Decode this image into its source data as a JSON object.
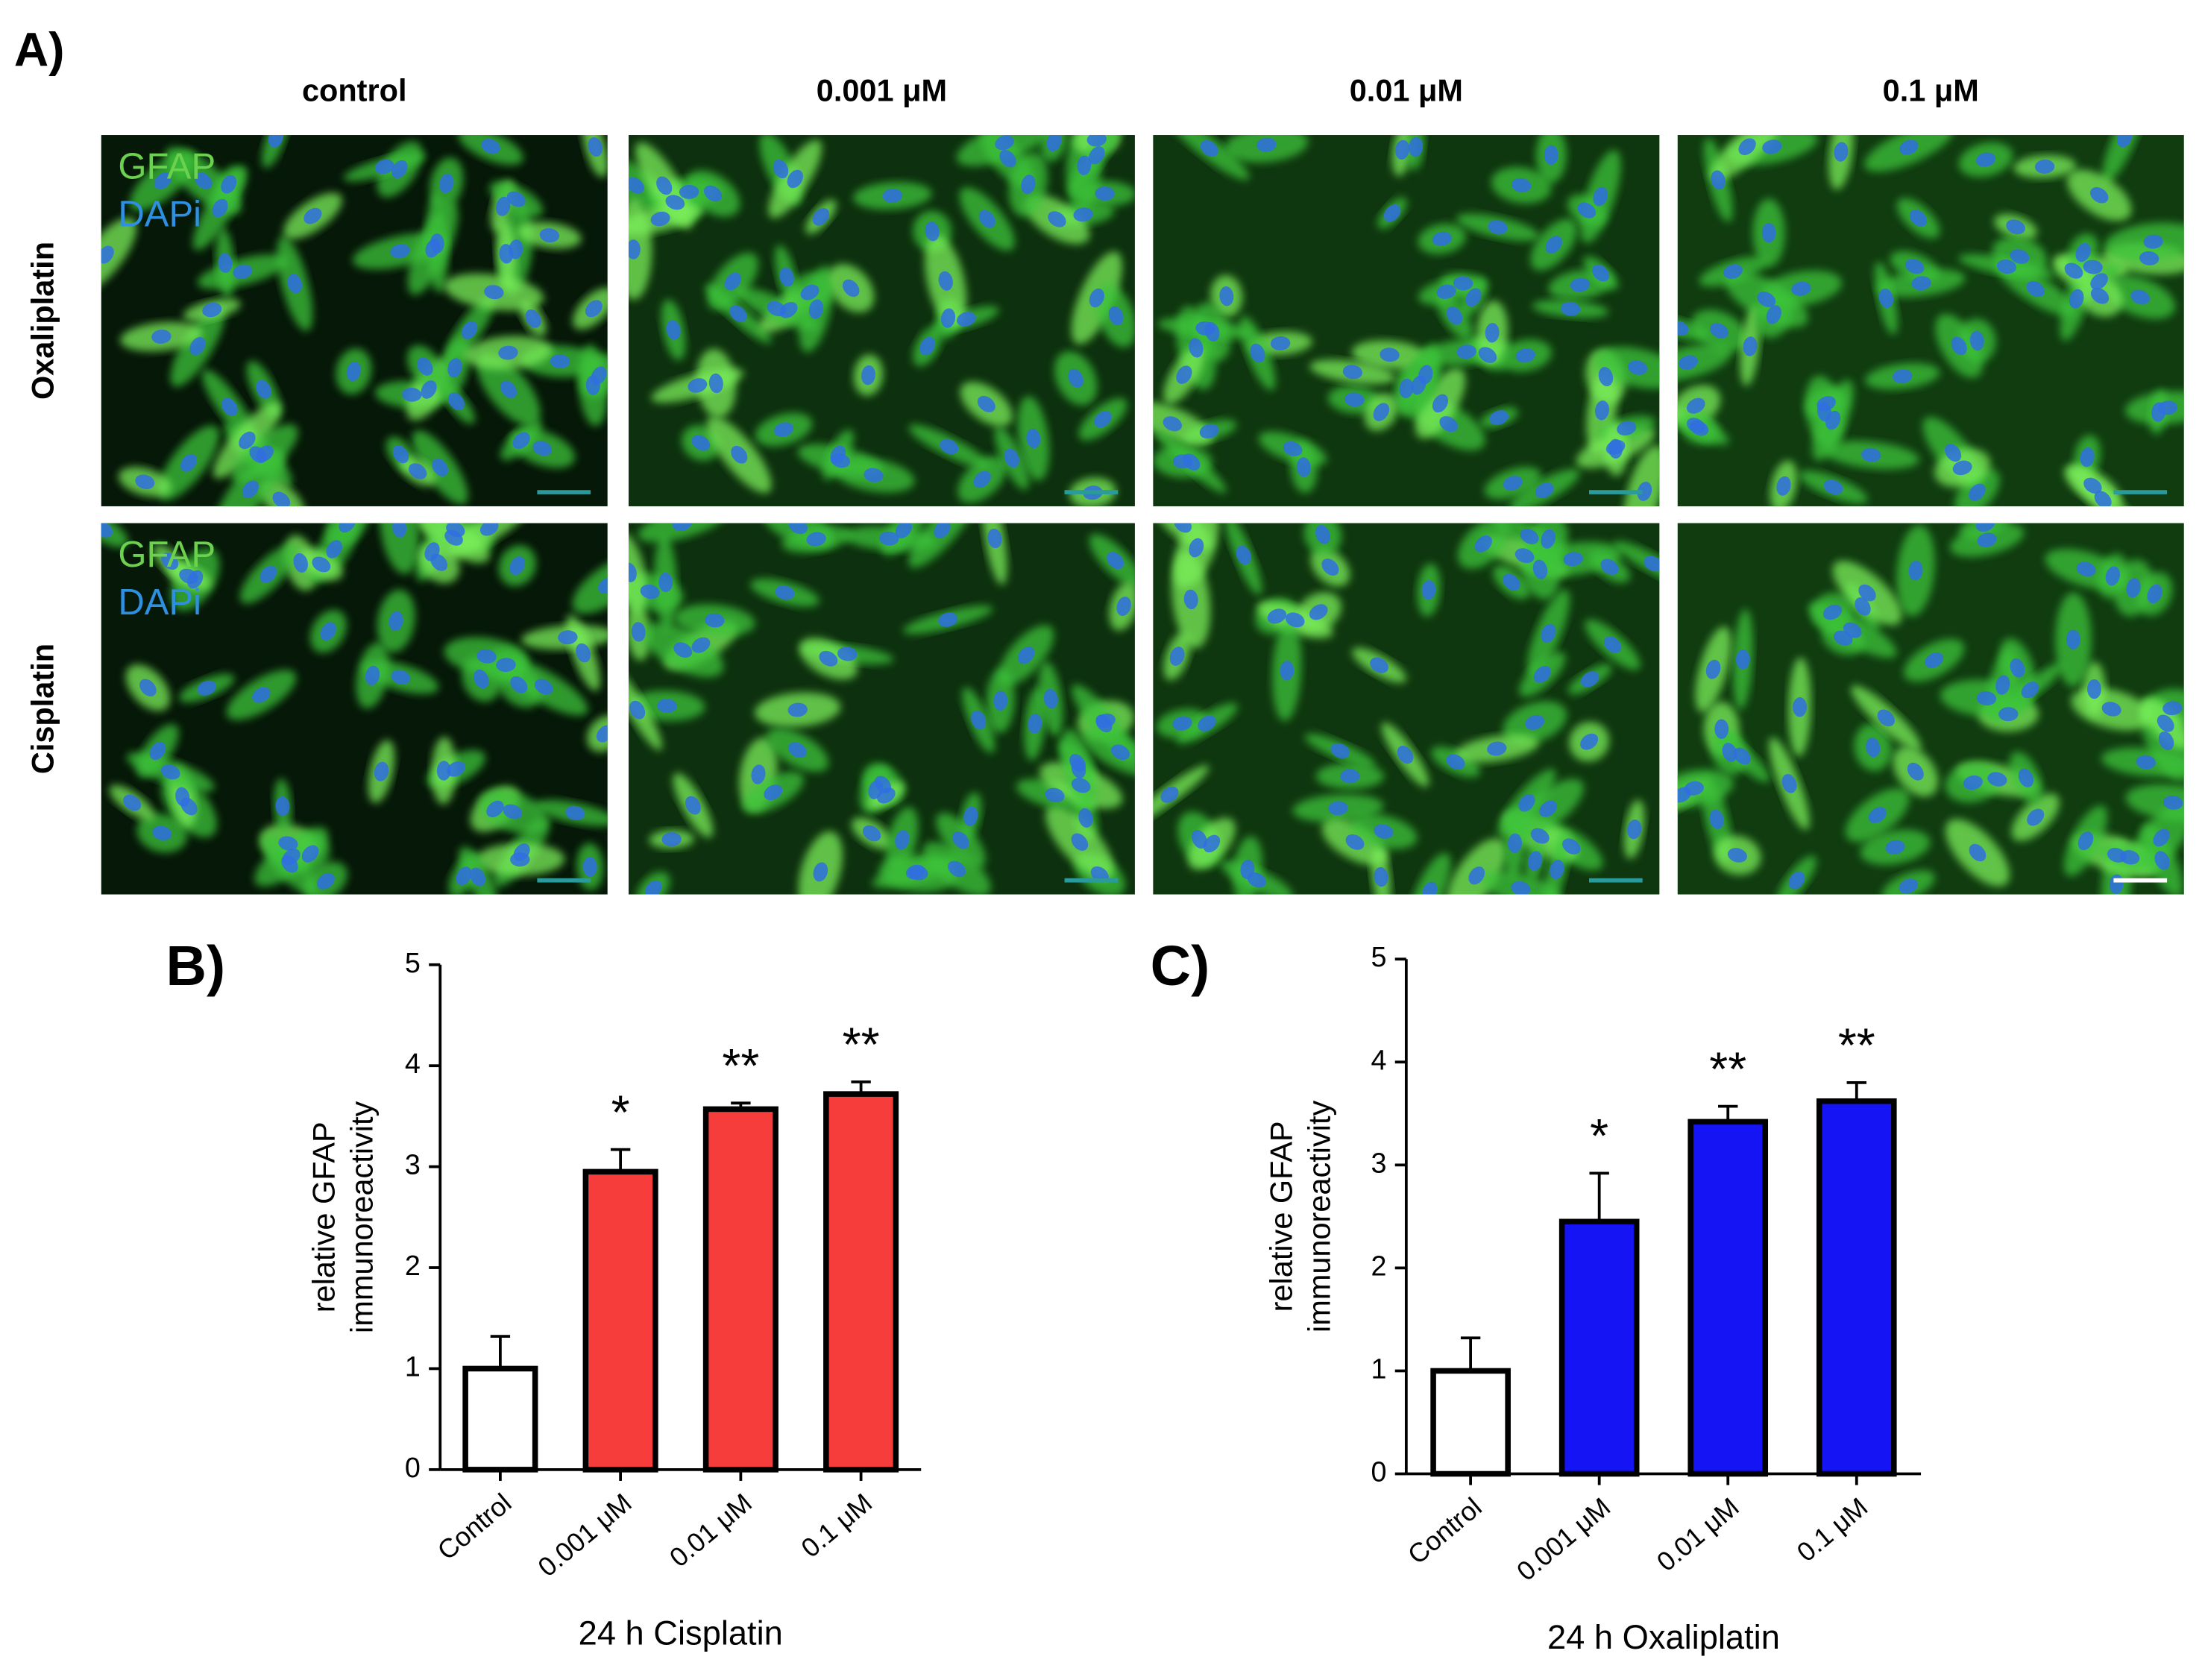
{
  "panel_a": {
    "letter": "A)",
    "columns": [
      "control",
      "0.001 μM",
      "0.01 μM",
      "0.1 μM"
    ],
    "rows": [
      "Oxaliplatin",
      "Cisplatin"
    ],
    "stain_labels": [
      "GFAP",
      "DAPi"
    ]
  },
  "chart_data": [
    {
      "type": "bar",
      "letter": "B)",
      "title": "24 h Cisplatin",
      "ylabel": [
        "relative GFAP",
        "immunoreactivity"
      ],
      "categories": [
        "Control",
        "0.001 μM",
        "0.01 μM",
        "0.1 μM"
      ],
      "values": [
        1,
        2.95,
        3.57,
        3.72
      ],
      "errors": [
        0.32,
        0.22,
        0.06,
        0.12
      ],
      "significance": [
        null,
        "*",
        "**",
        "**"
      ],
      "colors": [
        "#ffffff",
        "#f73c3c",
        "#f73c3c",
        "#f73c3c"
      ],
      "ylim": [
        0,
        5
      ],
      "yticks": [
        0,
        1,
        2,
        3,
        4,
        5
      ]
    },
    {
      "type": "bar",
      "letter": "C)",
      "title": "24 h Oxaliplatin",
      "ylabel": [
        "relative GFAP",
        "immunoreactivity"
      ],
      "categories": [
        "Control",
        "0.001 μM",
        "0.01 μM",
        "0.1 μM"
      ],
      "values": [
        1,
        2.45,
        3.42,
        3.62
      ],
      "errors": [
        0.32,
        0.47,
        0.15,
        0.18
      ],
      "significance": [
        null,
        "*",
        "**",
        "**"
      ],
      "colors": [
        "#ffffff",
        "#1414f5",
        "#1414f5",
        "#1414f5"
      ],
      "ylim": [
        0,
        5
      ],
      "yticks": [
        0,
        1,
        2,
        3,
        4,
        5
      ]
    }
  ]
}
